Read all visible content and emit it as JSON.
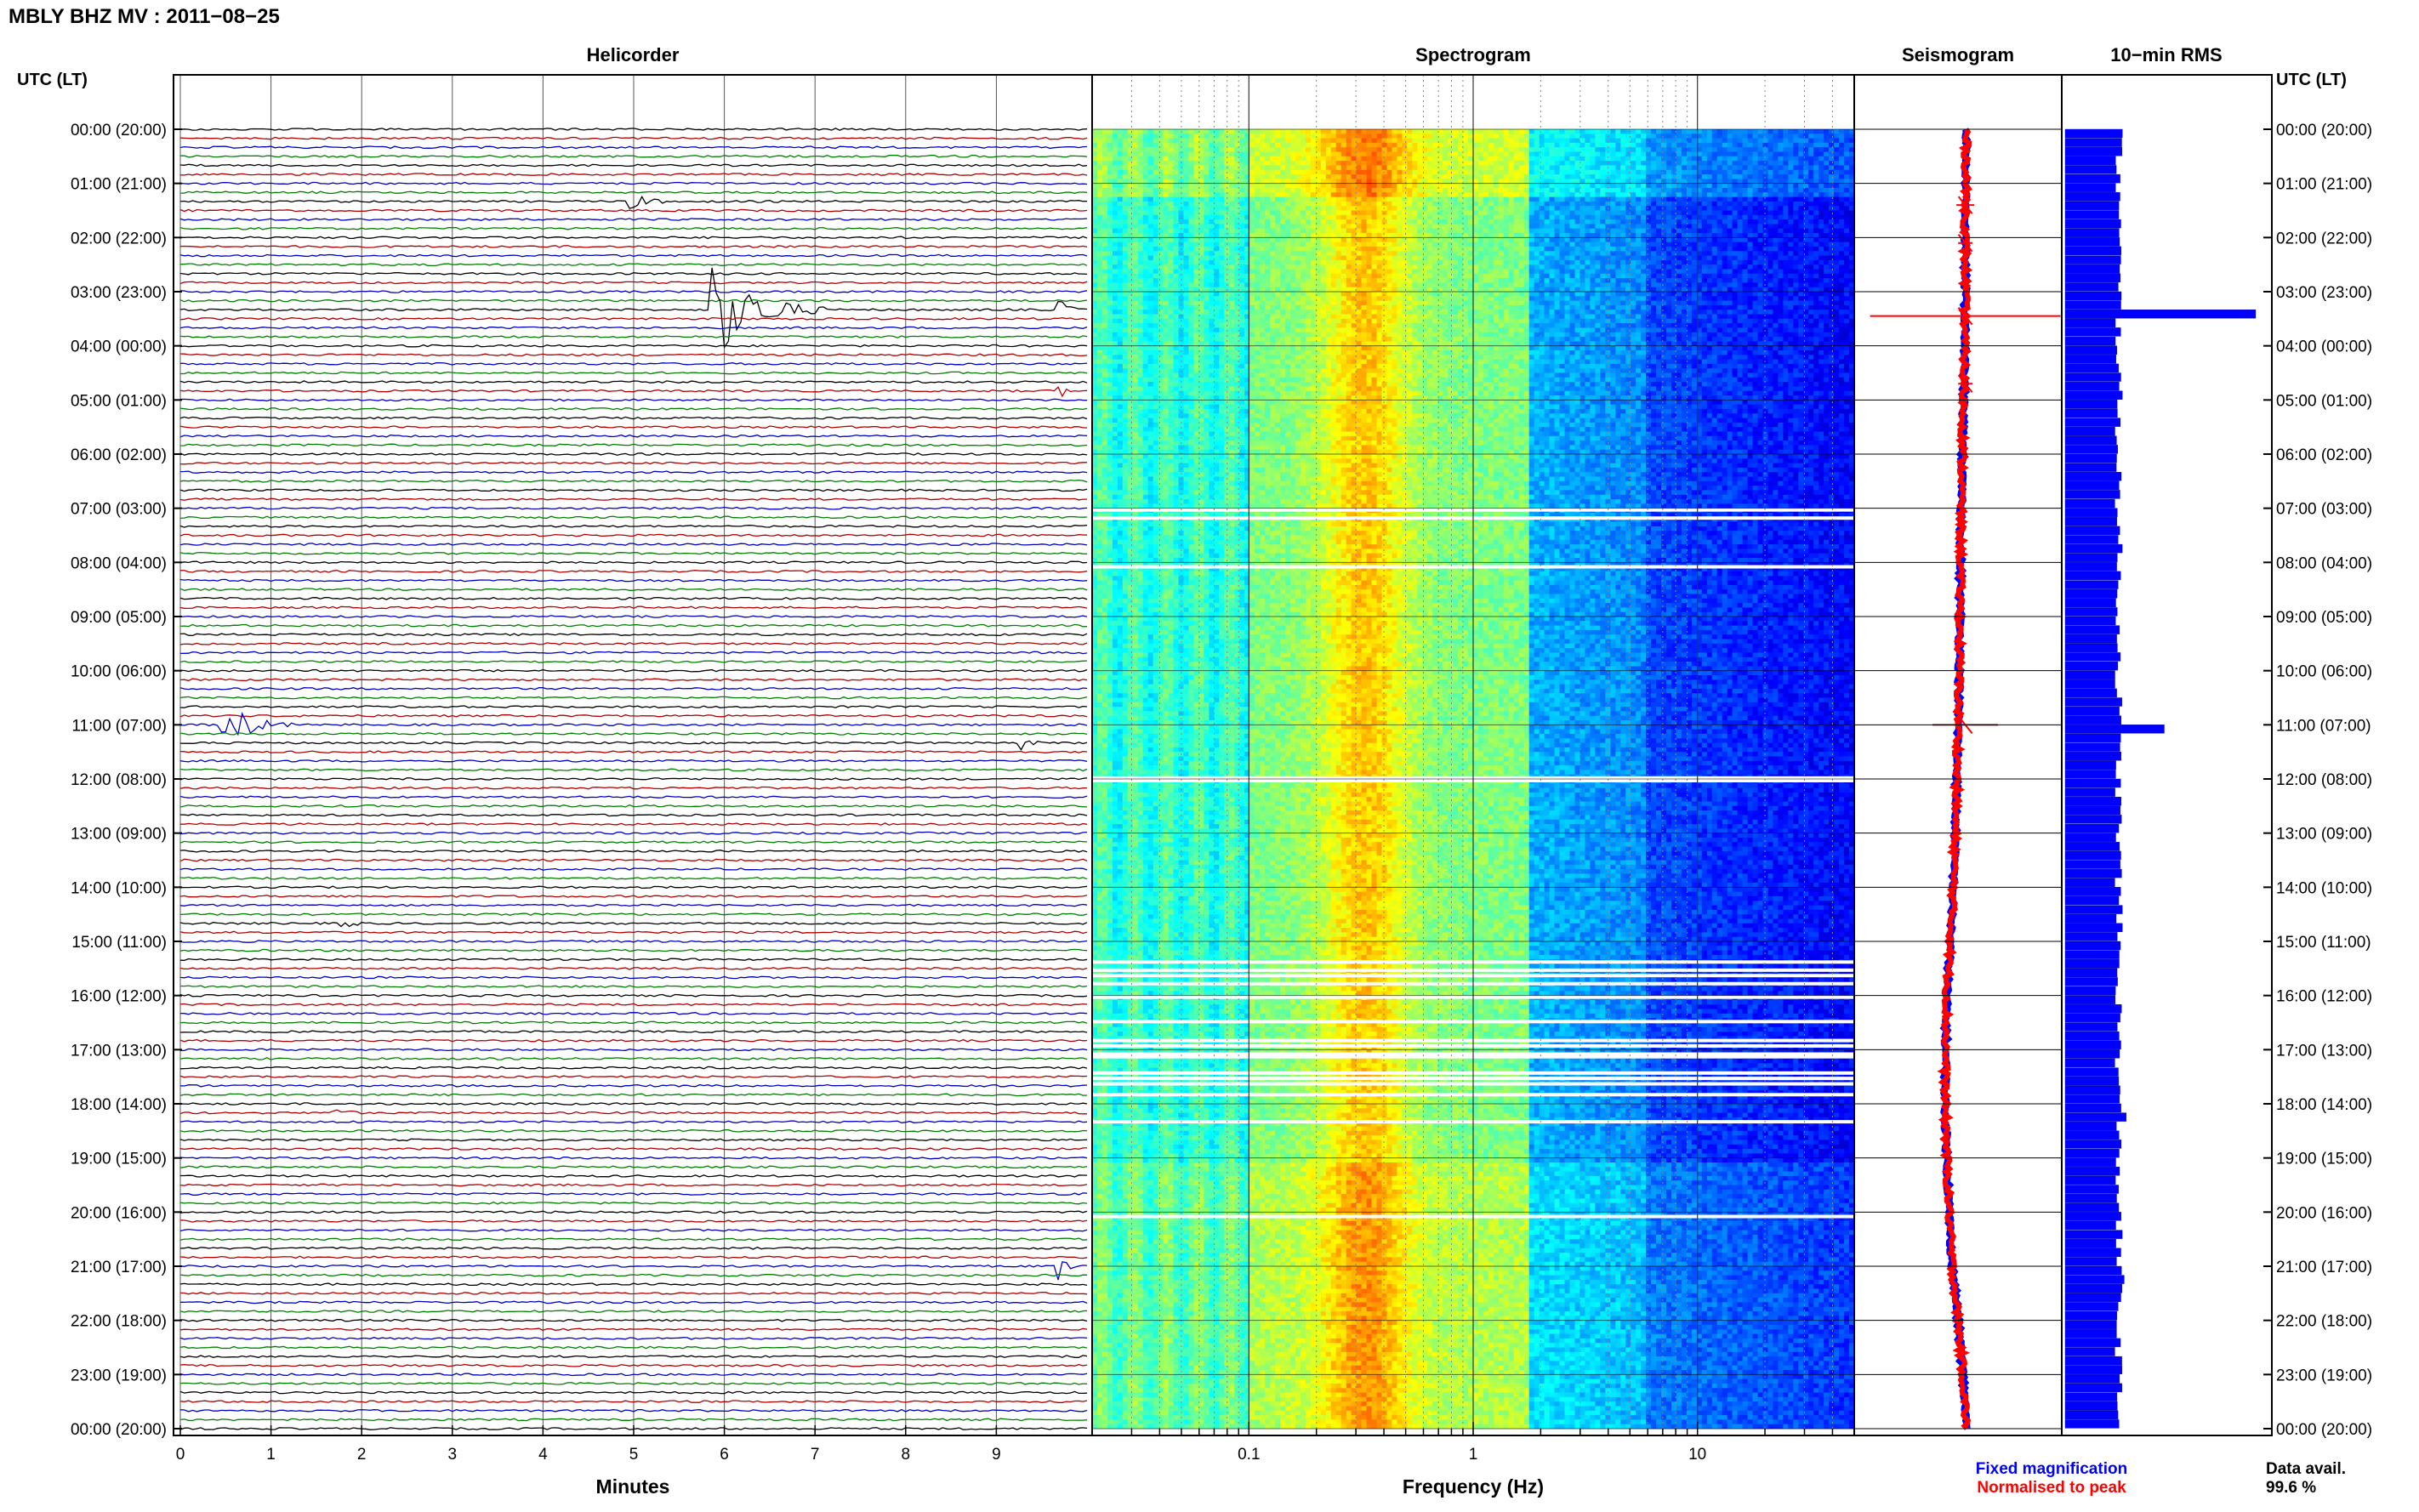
{
  "title": "MBLY BHZ MV : 2011−08−25",
  "panels": {
    "helicorder": "Helicorder",
    "spectrogram": "Spectrogram",
    "seismogram": "Seismogram",
    "rms": "10−min RMS"
  },
  "time_axis_label": "UTC (LT)",
  "x_labels": {
    "minutes": "Minutes",
    "frequency": "Frequency (Hz)"
  },
  "legend": {
    "fixed": "Fixed magnification",
    "normalised": "Normalised to peak"
  },
  "data_availability": {
    "label": "Data avail.",
    "value": "99.6 %"
  },
  "colors": {
    "trace_cycle": [
      "#000000",
      "#b00000",
      "#0000c0",
      "#008000"
    ],
    "fixed": "#0000ff",
    "normalised": "#ff0000",
    "rms_bar": "#0000ff"
  },
  "chart_data": [
    {
      "type": "line",
      "panel": "Helicorder",
      "xlabel": "Minutes",
      "x_ticks": [
        0,
        1,
        2,
        3,
        4,
        5,
        6,
        7,
        8,
        9
      ],
      "xlim": [
        0,
        10
      ],
      "rows_per_hour": 6,
      "y_ticks": [
        "00:00 (20:00)",
        "01:00 (21:00)",
        "02:00 (22:00)",
        "03:00 (23:00)",
        "04:00 (00:00)",
        "05:00 (01:00)",
        "06:00 (02:00)",
        "07:00 (03:00)",
        "08:00 (04:00)",
        "09:00 (05:00)",
        "10:00 (06:00)",
        "11:00 (07:00)",
        "12:00 (08:00)",
        "13:00 (09:00)",
        "14:00 (10:00)",
        "15:00 (11:00)",
        "16:00 (12:00)",
        "17:00 (13:00)",
        "18:00 (14:00)",
        "19:00 (15:00)",
        "20:00 (16:00)",
        "21:00 (17:00)",
        "22:00 (18:00)",
        "23:00 (19:00)",
        "00:00 (20:00)"
      ],
      "events": [
        {
          "hour": 3.3,
          "minute": 5.9,
          "duration_min": 1.2,
          "amplitude": 1.0
        },
        {
          "hour": 11.0,
          "minute": 0.5,
          "duration_min": 0.8,
          "amplitude": 0.45
        },
        {
          "hour": 1.3,
          "minute": 5.0,
          "duration_min": 0.6,
          "amplitude": 0.15
        },
        {
          "hour": 3.3,
          "minute": 9.7,
          "duration_min": 0.3,
          "amplitude": 0.2
        },
        {
          "hour": 4.8,
          "minute": 9.7,
          "duration_min": 0.2,
          "amplitude": 0.15
        },
        {
          "hour": 14.7,
          "minute": 1.8,
          "duration_min": 0.3,
          "amplitude": 0.15
        },
        {
          "hour": 18.1,
          "minute": 1.7,
          "duration_min": 0.4,
          "amplitude": 0.15
        },
        {
          "hour": 11.3,
          "minute": 9.3,
          "duration_min": 0.3,
          "amplitude": 0.12
        },
        {
          "hour": 21.0,
          "minute": 9.7,
          "duration_min": 0.2,
          "amplitude": 0.25
        }
      ]
    },
    {
      "type": "heatmap",
      "panel": "Spectrogram",
      "xlabel": "Frequency (Hz)",
      "x_scale": "log",
      "xlim": [
        0.02,
        50
      ],
      "x_tick_labels": [
        {
          "value": 0.1,
          "label": "0.1"
        },
        {
          "value": 1,
          "label": "1"
        },
        {
          "value": 10,
          "label": "10"
        }
      ],
      "ylim_hours": [
        0,
        24
      ],
      "energy_peak_hz": 0.33,
      "colormap": "jet",
      "data_gap_hours": [
        7.0,
        7.15,
        8.05,
        11.95,
        12.0,
        15.35,
        15.5,
        15.6,
        15.75,
        16.0,
        16.45,
        16.8,
        16.9,
        17.05,
        17.1,
        17.4,
        17.5,
        17.6,
        17.8,
        18.3,
        20.05
      ]
    },
    {
      "type": "line",
      "panel": "Seismogram",
      "series": [
        {
          "name": "Fixed magnification",
          "hours": [
            0,
            1,
            2,
            3,
            4,
            5,
            6,
            7,
            8,
            9,
            10,
            11,
            12,
            13,
            14,
            15,
            16,
            17,
            18,
            19,
            20,
            21,
            22,
            23,
            24
          ],
          "values": [
            0.0,
            -0.01,
            -0.02,
            -0.02,
            -0.03,
            -0.05,
            -0.07,
            -0.09,
            -0.1,
            -0.11,
            -0.12,
            -0.14,
            -0.16,
            -0.19,
            -0.22,
            -0.27,
            -0.33,
            -0.35,
            -0.36,
            -0.33,
            -0.29,
            -0.24,
            -0.14,
            -0.06,
            0.0
          ]
        },
        {
          "name": "Normalised to peak",
          "hours": [
            0,
            1,
            2,
            3,
            4,
            5,
            6,
            7,
            8,
            9,
            10,
            11,
            12,
            13,
            14,
            15,
            16,
            17,
            18,
            19,
            20,
            21,
            22,
            23,
            24
          ],
          "values": [
            0.0,
            -0.01,
            -0.02,
            -0.02,
            -0.03,
            -0.05,
            -0.07,
            -0.09,
            -0.1,
            -0.11,
            -0.12,
            -0.14,
            -0.16,
            -0.19,
            -0.22,
            -0.27,
            -0.33,
            -0.35,
            -0.36,
            -0.33,
            -0.29,
            -0.24,
            -0.14,
            -0.06,
            0.0
          ]
        }
      ],
      "spikes": [
        {
          "hour": 3.45,
          "half_width": 1.6
        },
        {
          "hour": 11.0,
          "half_width": 0.55
        },
        {
          "hour": 1.4,
          "half_width": 0.15
        },
        {
          "hour": 2.1,
          "half_width": 0.12
        },
        {
          "hour": 4.7,
          "half_width": 0.12
        }
      ]
    },
    {
      "type": "bar",
      "panel": "10−min RMS",
      "orientation": "horizontal",
      "bin_minutes": 10,
      "baseline_value": 0.28,
      "unit": "relative",
      "peaks": [
        {
          "hour": 3.4,
          "value": 1.0
        },
        {
          "hour": 11.0,
          "value": 0.52
        },
        {
          "hour": 0.05,
          "value": 0.3
        },
        {
          "hour": 14.7,
          "value": 0.3
        },
        {
          "hour": 18.2,
          "value": 0.32
        },
        {
          "hour": 21.1,
          "value": 0.31
        },
        {
          "hour": 15.0,
          "value": 0.29
        }
      ]
    }
  ]
}
